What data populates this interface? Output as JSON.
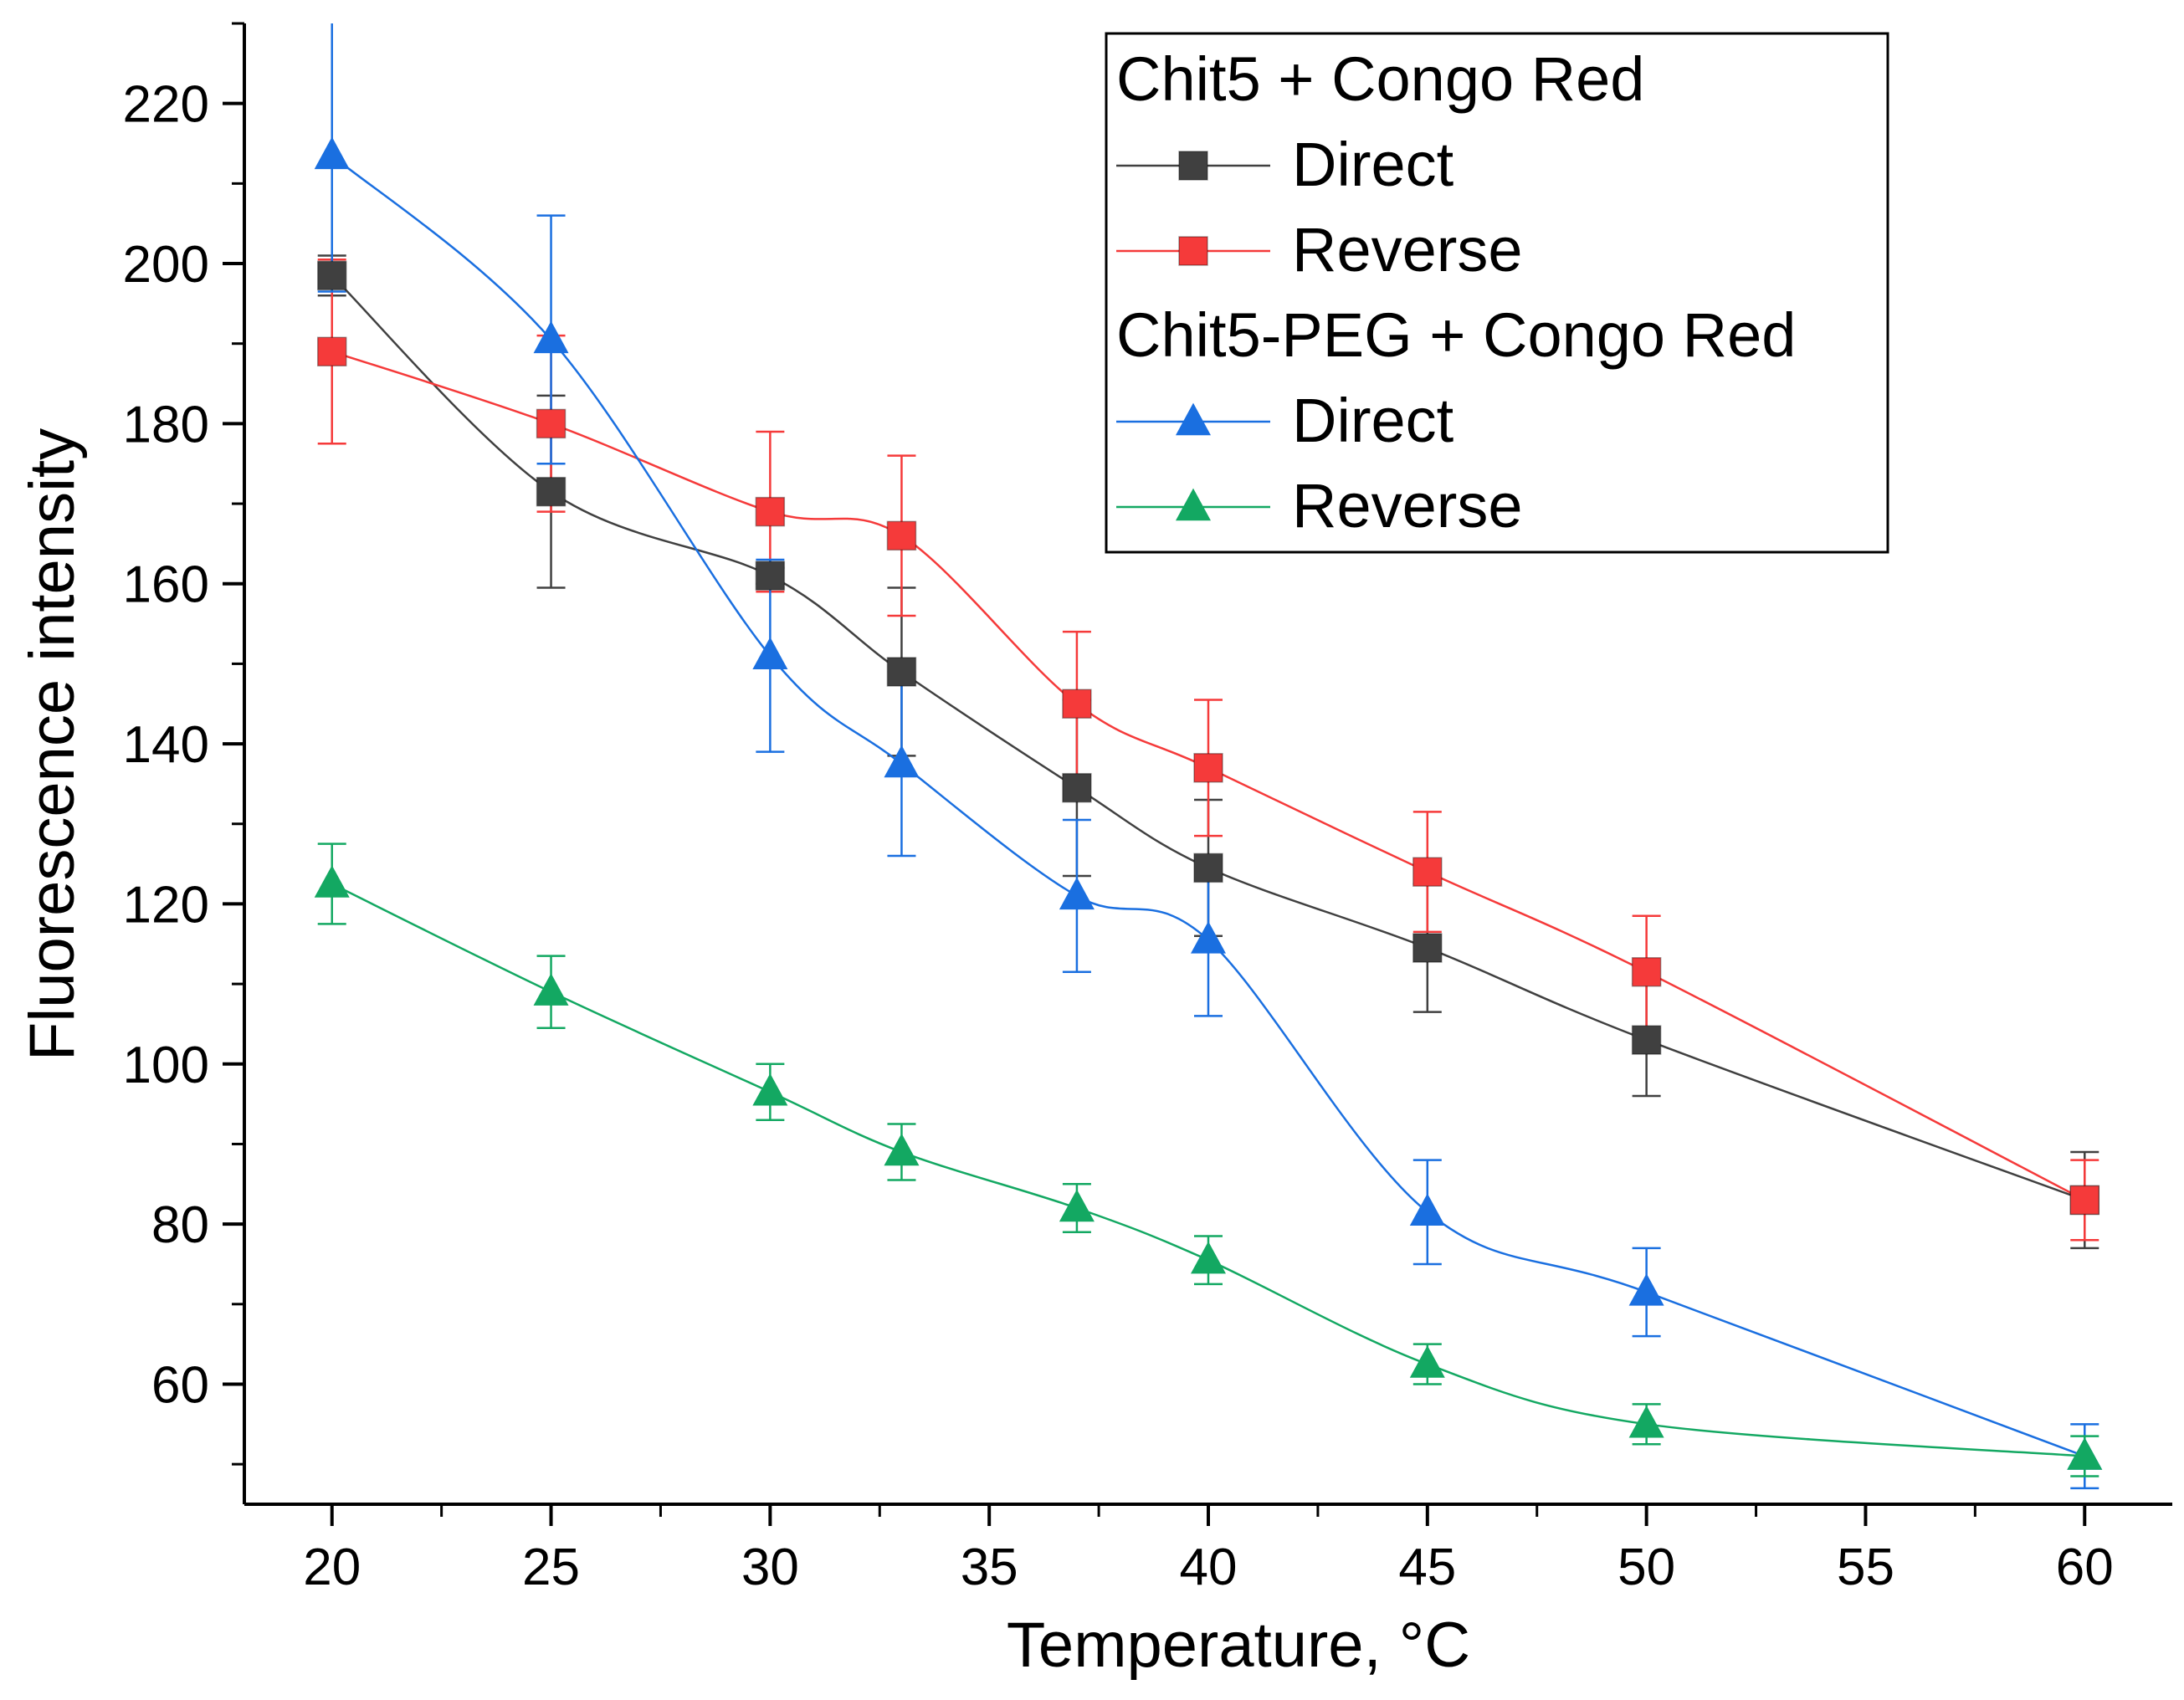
{
  "chart_data": {
    "type": "line",
    "xlabel": "Temperature, °C",
    "ylabel": "Fluorescence intensity",
    "xlim": [
      18,
      62
    ],
    "ylim": [
      45,
      230
    ],
    "xticks": [
      20,
      25,
      30,
      35,
      40,
      45,
      50,
      55,
      60
    ],
    "yticks": [
      60,
      80,
      100,
      120,
      140,
      160,
      180,
      200,
      220
    ],
    "x": [
      20,
      25,
      30,
      33,
      37,
      40,
      45,
      50,
      60
    ],
    "legend_position": "top-right",
    "legend_groups": [
      {
        "title": "Chit5 + Congo Red",
        "series": [
          {
            "name": "Direct",
            "color": "#404040",
            "marker": "square",
            "values": [
              198.5,
              171.5,
              161,
              149,
              134.5,
              124.5,
              114.5,
              103,
              83
            ],
            "errors": [
              2.5,
              12,
              1,
              10.5,
              11,
              8.5,
              8,
              7,
              6
            ]
          },
          {
            "name": "Reverse",
            "color": "#f53a3a",
            "marker": "square",
            "values": [
              189,
              180,
              169,
              166,
              145,
              137,
              124,
              111.5,
              83
            ],
            "errors": [
              11.5,
              11,
              10,
              10,
              9,
              8.5,
              7.5,
              7,
              5
            ]
          }
        ]
      },
      {
        "title": "Chit5-PEG + Congo Red",
        "series": [
          {
            "name": "Direct",
            "color": "#1a6fe0",
            "marker": "triangle",
            "values": [
              213.5,
              190.5,
              151,
              137.5,
              121,
              115.5,
              81.5,
              71.5,
              51
            ],
            "errors": [
              17,
              15.5,
              12,
              11.5,
              9.5,
              9.5,
              6.5,
              5.5,
              4
            ]
          },
          {
            "name": "Reverse",
            "color": "#13a862",
            "marker": "triangle",
            "values": [
              122.5,
              109,
              96.5,
              89,
              82,
              75.5,
              62.5,
              55,
              51
            ],
            "errors": [
              5,
              4.5,
              3.5,
              3.5,
              3,
              3,
              2.5,
              2.5,
              2.5
            ]
          }
        ]
      }
    ]
  }
}
